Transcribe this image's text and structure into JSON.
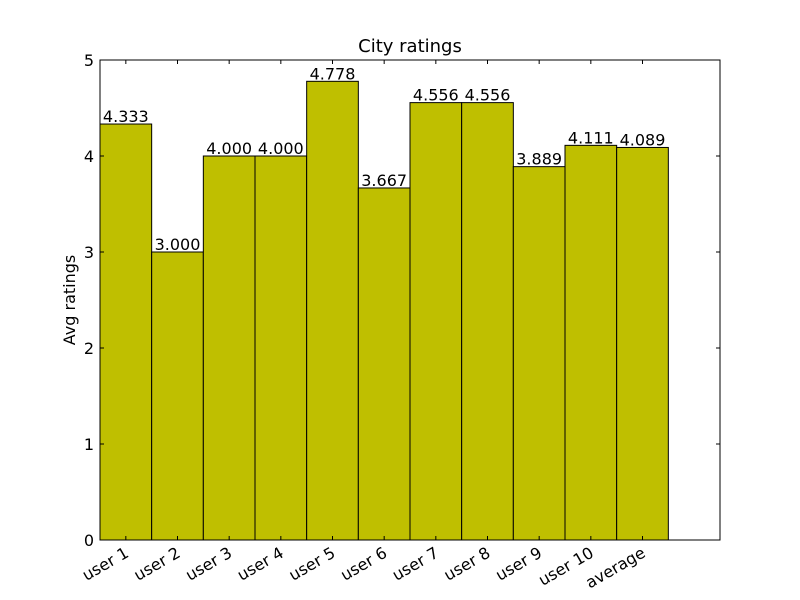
{
  "chart_data": {
    "type": "bar",
    "title": "City ratings",
    "xlabel": "",
    "ylabel": "Avg ratings",
    "categories": [
      "user 1",
      "user 2",
      "user 3",
      "user 4",
      "user 5",
      "user 6",
      "user 7",
      "user 8",
      "user 9",
      "user 10",
      "average"
    ],
    "values": [
      4.333,
      3.0,
      4.0,
      4.0,
      4.778,
      3.667,
      4.556,
      4.556,
      3.889,
      4.111,
      4.089
    ],
    "value_labels": [
      "4.333",
      "3.000",
      "4.000",
      "4.000",
      "4.778",
      "3.667",
      "4.556",
      "4.556",
      "3.889",
      "4.111",
      "4.089"
    ],
    "ylim": [
      0,
      5
    ],
    "yticks": [
      "0",
      "1",
      "2",
      "3",
      "4",
      "5"
    ],
    "bar_color": "#bfbf00",
    "edge_color": "#000000",
    "grid": false,
    "legend": "none"
  }
}
